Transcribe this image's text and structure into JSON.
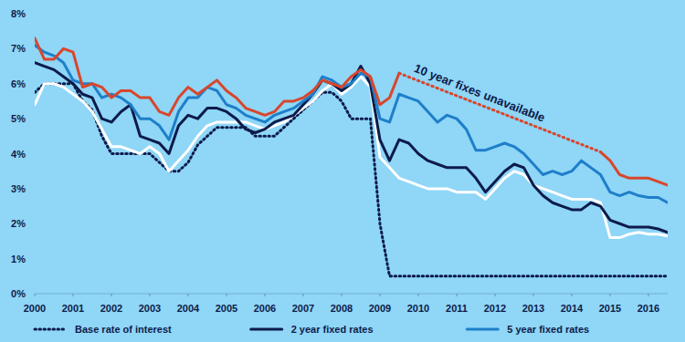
{
  "chart_data": {
    "type": "line",
    "x": [
      2000,
      2000.25,
      2000.5,
      2000.75,
      2001,
      2001.25,
      2001.5,
      2001.75,
      2002,
      2002.25,
      2002.5,
      2002.75,
      2003,
      2003.25,
      2003.5,
      2003.75,
      2004,
      2004.25,
      2004.5,
      2004.75,
      2005,
      2005.25,
      2005.5,
      2005.75,
      2006,
      2006.25,
      2006.5,
      2006.75,
      2007,
      2007.25,
      2007.5,
      2007.75,
      2008,
      2008.25,
      2008.5,
      2008.75,
      2009,
      2009.25,
      2009.5,
      2009.75,
      2010,
      2010.25,
      2010.5,
      2010.75,
      2011,
      2011.25,
      2011.5,
      2011.75,
      2012,
      2012.25,
      2012.5,
      2012.75,
      2013,
      2013.25,
      2013.5,
      2013.75,
      2014,
      2014.25,
      2014.5,
      2014.75,
      2015,
      2015.25,
      2015.5,
      2015.75,
      2016,
      2016.25,
      2016.5
    ],
    "xlim": [
      2000,
      2016.5
    ],
    "xticks": [
      2000,
      2001,
      2002,
      2003,
      2004,
      2005,
      2006,
      2007,
      2008,
      2009,
      2010,
      2011,
      2012,
      2013,
      2014,
      2015,
      2016
    ],
    "ylim": [
      0,
      8
    ],
    "yticks": [
      {
        "value": 0,
        "label": "0%"
      },
      {
        "value": 1,
        "label": "1%"
      },
      {
        "value": 2,
        "label": "2%"
      },
      {
        "value": 3,
        "label": "3%"
      },
      {
        "value": 4,
        "label": "4%"
      },
      {
        "value": 5,
        "label": "5%"
      },
      {
        "value": 6,
        "label": "6%"
      },
      {
        "value": 7,
        "label": "7%"
      },
      {
        "value": 8,
        "label": "8%"
      }
    ],
    "grid": false,
    "legend": "bottom",
    "series": [
      {
        "name": "Base rate of interest",
        "color": "#0d1b4a",
        "line_style": "dotted",
        "values": [
          5.75,
          6.0,
          6.0,
          6.0,
          6.0,
          5.5,
          5.25,
          4.5,
          4.0,
          4.0,
          4.0,
          4.0,
          4.0,
          3.75,
          3.5,
          3.5,
          3.75,
          4.25,
          4.5,
          4.75,
          4.75,
          4.75,
          4.75,
          4.5,
          4.5,
          4.5,
          4.75,
          5.0,
          5.25,
          5.5,
          5.75,
          5.75,
          5.5,
          5.0,
          5.0,
          5.0,
          2.0,
          0.5,
          0.5,
          0.5,
          0.5,
          0.5,
          0.5,
          0.5,
          0.5,
          0.5,
          0.5,
          0.5,
          0.5,
          0.5,
          0.5,
          0.5,
          0.5,
          0.5,
          0.5,
          0.5,
          0.5,
          0.5,
          0.5,
          0.5,
          0.5,
          0.5,
          0.5,
          0.5,
          0.5,
          0.5,
          0.5
        ]
      },
      {
        "color": "#ffffff",
        "line_style": "solid",
        "values": [
          5.4,
          6.0,
          6.0,
          5.9,
          5.7,
          5.5,
          5.2,
          4.7,
          4.2,
          4.2,
          4.1,
          4.0,
          4.2,
          4.0,
          3.5,
          3.8,
          4.1,
          4.5,
          4.8,
          4.9,
          4.9,
          4.9,
          4.9,
          4.8,
          4.7,
          4.8,
          4.9,
          5.1,
          5.3,
          5.5,
          5.8,
          6.0,
          5.7,
          5.9,
          6.2,
          5.9,
          3.9,
          3.6,
          3.3,
          3.2,
          3.1,
          3.0,
          3.0,
          3.0,
          2.9,
          2.9,
          2.9,
          2.7,
          3.0,
          3.3,
          3.5,
          3.4,
          3.1,
          3.0,
          2.9,
          2.8,
          2.7,
          2.7,
          2.7,
          2.6,
          1.6,
          1.6,
          1.7,
          1.75,
          1.7,
          1.7,
          1.65
        ]
      },
      {
        "name": "2 year fixed rates",
        "color": "#0d1b4a",
        "line_style": "solid",
        "values": [
          6.6,
          6.5,
          6.4,
          6.2,
          6.0,
          5.7,
          5.6,
          5.0,
          4.9,
          5.2,
          5.4,
          4.5,
          4.4,
          4.3,
          4.0,
          4.8,
          5.1,
          5.0,
          5.3,
          5.3,
          5.2,
          5.0,
          4.7,
          4.6,
          4.7,
          4.9,
          5.0,
          5.1,
          5.4,
          5.7,
          6.1,
          6.0,
          5.8,
          6.0,
          6.5,
          6.0,
          4.4,
          3.8,
          4.4,
          4.3,
          4.0,
          3.8,
          3.7,
          3.6,
          3.6,
          3.6,
          3.3,
          2.9,
          3.2,
          3.5,
          3.7,
          3.6,
          3.1,
          2.8,
          2.6,
          2.5,
          2.4,
          2.4,
          2.6,
          2.5,
          2.1,
          2.0,
          1.9,
          1.9,
          1.9,
          1.85,
          1.75
        ]
      },
      {
        "name": "5 year fixed rates",
        "color": "#1e7fc9",
        "line_style": "solid",
        "values": [
          7.1,
          6.9,
          6.8,
          6.6,
          6.1,
          6.0,
          6.0,
          5.6,
          5.7,
          5.6,
          5.4,
          5.0,
          5.0,
          4.8,
          4.4,
          5.2,
          5.6,
          5.6,
          5.9,
          5.8,
          5.4,
          5.3,
          5.1,
          5.0,
          4.9,
          5.1,
          5.2,
          5.3,
          5.5,
          5.7,
          6.2,
          6.1,
          5.9,
          6.0,
          6.3,
          6.2,
          5.0,
          4.9,
          5.7,
          5.6,
          5.5,
          5.2,
          4.9,
          5.1,
          5.0,
          4.7,
          4.1,
          4.1,
          4.2,
          4.3,
          4.2,
          4.0,
          3.7,
          3.4,
          3.5,
          3.4,
          3.5,
          3.8,
          3.6,
          3.4,
          2.9,
          2.8,
          2.9,
          2.8,
          2.75,
          2.75,
          2.6
        ]
      },
      {
        "color": "#d9462b",
        "line_style": "solid",
        "annotation": "10 year fixes unavailable",
        "values": [
          7.3,
          6.7,
          6.7,
          7.0,
          6.9,
          5.9,
          6.0,
          5.9,
          5.6,
          5.8,
          5.8,
          5.6,
          5.6,
          5.2,
          5.1,
          5.6,
          5.9,
          5.7,
          5.9,
          6.1,
          5.8,
          5.6,
          5.3,
          5.2,
          5.1,
          5.2,
          5.5,
          5.5,
          5.6,
          5.8,
          6.1,
          6.0,
          5.9,
          6.2,
          6.4,
          6.2,
          5.4,
          5.6,
          6.3,
          null,
          null,
          null,
          null,
          null,
          null,
          null,
          null,
          null,
          null,
          null,
          null,
          null,
          null,
          null,
          null,
          null,
          null,
          null,
          null,
          4.05,
          3.8,
          3.4,
          3.3,
          3.3,
          3.3,
          3.2,
          3.1
        ]
      }
    ]
  }
}
